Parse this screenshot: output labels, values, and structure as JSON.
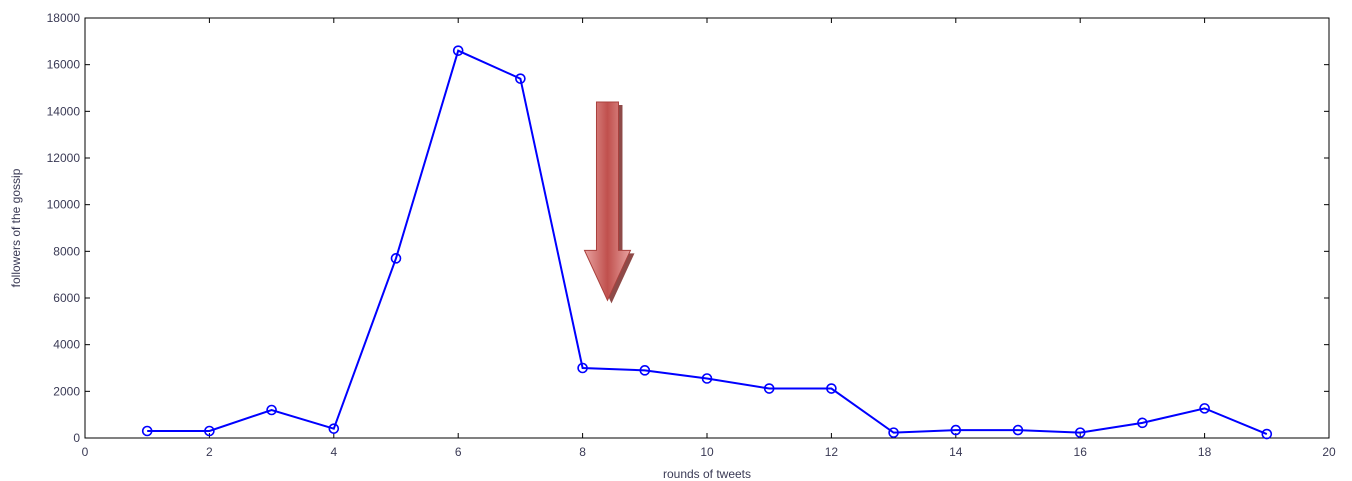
{
  "chart_data": {
    "type": "line",
    "xlabel": "rounds of tweets",
    "ylabel": "followers of the gossip",
    "xlim": [
      0,
      20
    ],
    "ylim": [
      0,
      18000
    ],
    "xticks": [
      0,
      2,
      4,
      6,
      8,
      10,
      12,
      14,
      16,
      18,
      20
    ],
    "yticks": [
      0,
      2000,
      4000,
      6000,
      8000,
      10000,
      12000,
      14000,
      16000,
      18000
    ],
    "grid": false,
    "series": [
      {
        "color": "#0000ff",
        "marker": "circle",
        "x": [
          1,
          2,
          3,
          4,
          5,
          6,
          7,
          8,
          9,
          10,
          11,
          12,
          13,
          14,
          15,
          16,
          17,
          18,
          19
        ],
        "y": [
          300,
          300,
          1200,
          400,
          7700,
          16600,
          15400,
          3000,
          2900,
          2550,
          2120,
          2120,
          230,
          340,
          340,
          230,
          650,
          1270,
          170
        ]
      }
    ],
    "annotations": [
      {
        "type": "arrow",
        "direction": "down",
        "x": 8.4,
        "y_top": 14400,
        "y_tip": 5900,
        "color": "#c0504d"
      }
    ]
  }
}
